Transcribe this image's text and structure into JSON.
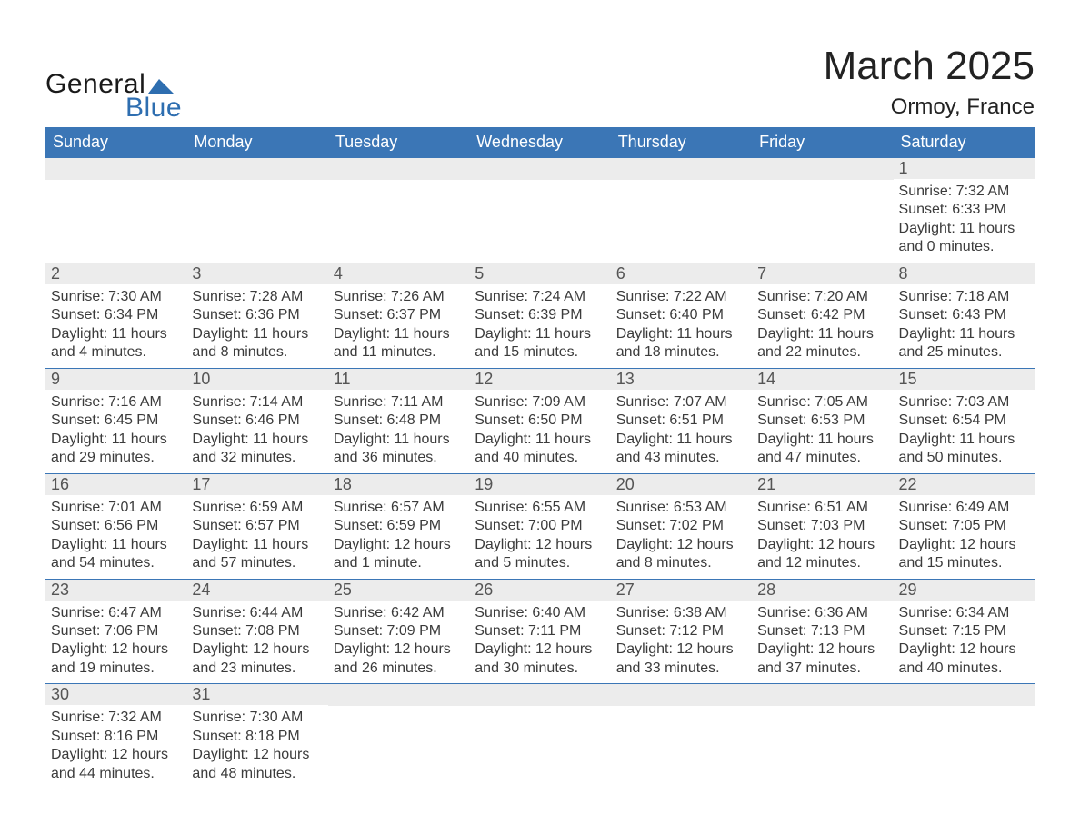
{
  "brand": {
    "line1": "General",
    "line2": "Blue"
  },
  "header": {
    "title": "March 2025",
    "location": "Ormoy, France"
  },
  "style": {
    "header_bg": "#3b76b6",
    "row_border": "#3b76b6",
    "daynum_bg": "#ececec",
    "text_color": "#333333",
    "title_fontsize": 44,
    "location_fontsize": 24,
    "weekday_fontsize": 18,
    "cell_fontsize": 16
  },
  "calendar": {
    "weekdays": [
      "Sunday",
      "Monday",
      "Tuesday",
      "Wednesday",
      "Thursday",
      "Friday",
      "Saturday"
    ],
    "weeks": [
      [
        null,
        null,
        null,
        null,
        null,
        null,
        {
          "day": "1",
          "sunrise": "Sunrise: 7:32 AM",
          "sunset": "Sunset: 6:33 PM",
          "daylight": "Daylight: 11 hours and 0 minutes."
        }
      ],
      [
        {
          "day": "2",
          "sunrise": "Sunrise: 7:30 AM",
          "sunset": "Sunset: 6:34 PM",
          "daylight": "Daylight: 11 hours and 4 minutes."
        },
        {
          "day": "3",
          "sunrise": "Sunrise: 7:28 AM",
          "sunset": "Sunset: 6:36 PM",
          "daylight": "Daylight: 11 hours and 8 minutes."
        },
        {
          "day": "4",
          "sunrise": "Sunrise: 7:26 AM",
          "sunset": "Sunset: 6:37 PM",
          "daylight": "Daylight: 11 hours and 11 minutes."
        },
        {
          "day": "5",
          "sunrise": "Sunrise: 7:24 AM",
          "sunset": "Sunset: 6:39 PM",
          "daylight": "Daylight: 11 hours and 15 minutes."
        },
        {
          "day": "6",
          "sunrise": "Sunrise: 7:22 AM",
          "sunset": "Sunset: 6:40 PM",
          "daylight": "Daylight: 11 hours and 18 minutes."
        },
        {
          "day": "7",
          "sunrise": "Sunrise: 7:20 AM",
          "sunset": "Sunset: 6:42 PM",
          "daylight": "Daylight: 11 hours and 22 minutes."
        },
        {
          "day": "8",
          "sunrise": "Sunrise: 7:18 AM",
          "sunset": "Sunset: 6:43 PM",
          "daylight": "Daylight: 11 hours and 25 minutes."
        }
      ],
      [
        {
          "day": "9",
          "sunrise": "Sunrise: 7:16 AM",
          "sunset": "Sunset: 6:45 PM",
          "daylight": "Daylight: 11 hours and 29 minutes."
        },
        {
          "day": "10",
          "sunrise": "Sunrise: 7:14 AM",
          "sunset": "Sunset: 6:46 PM",
          "daylight": "Daylight: 11 hours and 32 minutes."
        },
        {
          "day": "11",
          "sunrise": "Sunrise: 7:11 AM",
          "sunset": "Sunset: 6:48 PM",
          "daylight": "Daylight: 11 hours and 36 minutes."
        },
        {
          "day": "12",
          "sunrise": "Sunrise: 7:09 AM",
          "sunset": "Sunset: 6:50 PM",
          "daylight": "Daylight: 11 hours and 40 minutes."
        },
        {
          "day": "13",
          "sunrise": "Sunrise: 7:07 AM",
          "sunset": "Sunset: 6:51 PM",
          "daylight": "Daylight: 11 hours and 43 minutes."
        },
        {
          "day": "14",
          "sunrise": "Sunrise: 7:05 AM",
          "sunset": "Sunset: 6:53 PM",
          "daylight": "Daylight: 11 hours and 47 minutes."
        },
        {
          "day": "15",
          "sunrise": "Sunrise: 7:03 AM",
          "sunset": "Sunset: 6:54 PM",
          "daylight": "Daylight: 11 hours and 50 minutes."
        }
      ],
      [
        {
          "day": "16",
          "sunrise": "Sunrise: 7:01 AM",
          "sunset": "Sunset: 6:56 PM",
          "daylight": "Daylight: 11 hours and 54 minutes."
        },
        {
          "day": "17",
          "sunrise": "Sunrise: 6:59 AM",
          "sunset": "Sunset: 6:57 PM",
          "daylight": "Daylight: 11 hours and 57 minutes."
        },
        {
          "day": "18",
          "sunrise": "Sunrise: 6:57 AM",
          "sunset": "Sunset: 6:59 PM",
          "daylight": "Daylight: 12 hours and 1 minute."
        },
        {
          "day": "19",
          "sunrise": "Sunrise: 6:55 AM",
          "sunset": "Sunset: 7:00 PM",
          "daylight": "Daylight: 12 hours and 5 minutes."
        },
        {
          "day": "20",
          "sunrise": "Sunrise: 6:53 AM",
          "sunset": "Sunset: 7:02 PM",
          "daylight": "Daylight: 12 hours and 8 minutes."
        },
        {
          "day": "21",
          "sunrise": "Sunrise: 6:51 AM",
          "sunset": "Sunset: 7:03 PM",
          "daylight": "Daylight: 12 hours and 12 minutes."
        },
        {
          "day": "22",
          "sunrise": "Sunrise: 6:49 AM",
          "sunset": "Sunset: 7:05 PM",
          "daylight": "Daylight: 12 hours and 15 minutes."
        }
      ],
      [
        {
          "day": "23",
          "sunrise": "Sunrise: 6:47 AM",
          "sunset": "Sunset: 7:06 PM",
          "daylight": "Daylight: 12 hours and 19 minutes."
        },
        {
          "day": "24",
          "sunrise": "Sunrise: 6:44 AM",
          "sunset": "Sunset: 7:08 PM",
          "daylight": "Daylight: 12 hours and 23 minutes."
        },
        {
          "day": "25",
          "sunrise": "Sunrise: 6:42 AM",
          "sunset": "Sunset: 7:09 PM",
          "daylight": "Daylight: 12 hours and 26 minutes."
        },
        {
          "day": "26",
          "sunrise": "Sunrise: 6:40 AM",
          "sunset": "Sunset: 7:11 PM",
          "daylight": "Daylight: 12 hours and 30 minutes."
        },
        {
          "day": "27",
          "sunrise": "Sunrise: 6:38 AM",
          "sunset": "Sunset: 7:12 PM",
          "daylight": "Daylight: 12 hours and 33 minutes."
        },
        {
          "day": "28",
          "sunrise": "Sunrise: 6:36 AM",
          "sunset": "Sunset: 7:13 PM",
          "daylight": "Daylight: 12 hours and 37 minutes."
        },
        {
          "day": "29",
          "sunrise": "Sunrise: 6:34 AM",
          "sunset": "Sunset: 7:15 PM",
          "daylight": "Daylight: 12 hours and 40 minutes."
        }
      ],
      [
        {
          "day": "30",
          "sunrise": "Sunrise: 7:32 AM",
          "sunset": "Sunset: 8:16 PM",
          "daylight": "Daylight: 12 hours and 44 minutes."
        },
        {
          "day": "31",
          "sunrise": "Sunrise: 7:30 AM",
          "sunset": "Sunset: 8:18 PM",
          "daylight": "Daylight: 12 hours and 48 minutes."
        },
        null,
        null,
        null,
        null,
        null
      ]
    ]
  }
}
